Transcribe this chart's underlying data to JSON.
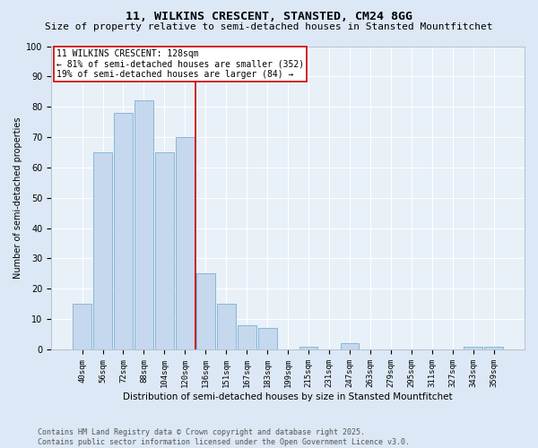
{
  "title1": "11, WILKINS CRESCENT, STANSTED, CM24 8GG",
  "title2": "Size of property relative to semi-detached houses in Stansted Mountfitchet",
  "xlabel": "Distribution of semi-detached houses by size in Stansted Mountfitchet",
  "ylabel": "Number of semi-detached properties",
  "categories": [
    "40sqm",
    "56sqm",
    "72sqm",
    "88sqm",
    "104sqm",
    "120sqm",
    "136sqm",
    "151sqm",
    "167sqm",
    "183sqm",
    "199sqm",
    "215sqm",
    "231sqm",
    "247sqm",
    "263sqm",
    "279sqm",
    "295sqm",
    "311sqm",
    "327sqm",
    "343sqm",
    "359sqm"
  ],
  "values": [
    15,
    65,
    78,
    82,
    65,
    70,
    25,
    15,
    8,
    7,
    0,
    1,
    0,
    2,
    0,
    0,
    0,
    0,
    0,
    1,
    1
  ],
  "bar_color": "#c5d8ed",
  "bar_edge_color": "#7aafd4",
  "vline_color": "#cc0000",
  "annotation_title": "11 WILKINS CRESCENT: 128sqm",
  "annotation_line1": "← 81% of semi-detached houses are smaller (352)",
  "annotation_line2": "19% of semi-detached houses are larger (84) →",
  "annotation_box_color": "#ffffff",
  "annotation_box_edge": "#cc0000",
  "ylim": [
    0,
    100
  ],
  "yticks": [
    0,
    10,
    20,
    30,
    40,
    50,
    60,
    70,
    80,
    90,
    100
  ],
  "footer1": "Contains HM Land Registry data © Crown copyright and database right 2025.",
  "footer2": "Contains public sector information licensed under the Open Government Licence v3.0.",
  "bg_color": "#dce8f5",
  "plot_bg_color": "#e8f0f8",
  "grid_color": "#ffffff",
  "title1_fontsize": 9.5,
  "title2_fontsize": 8.0,
  "xlabel_fontsize": 7.5,
  "ylabel_fontsize": 7.0,
  "tick_fontsize": 6.5,
  "annotation_fontsize": 7.0,
  "footer_fontsize": 6.0
}
